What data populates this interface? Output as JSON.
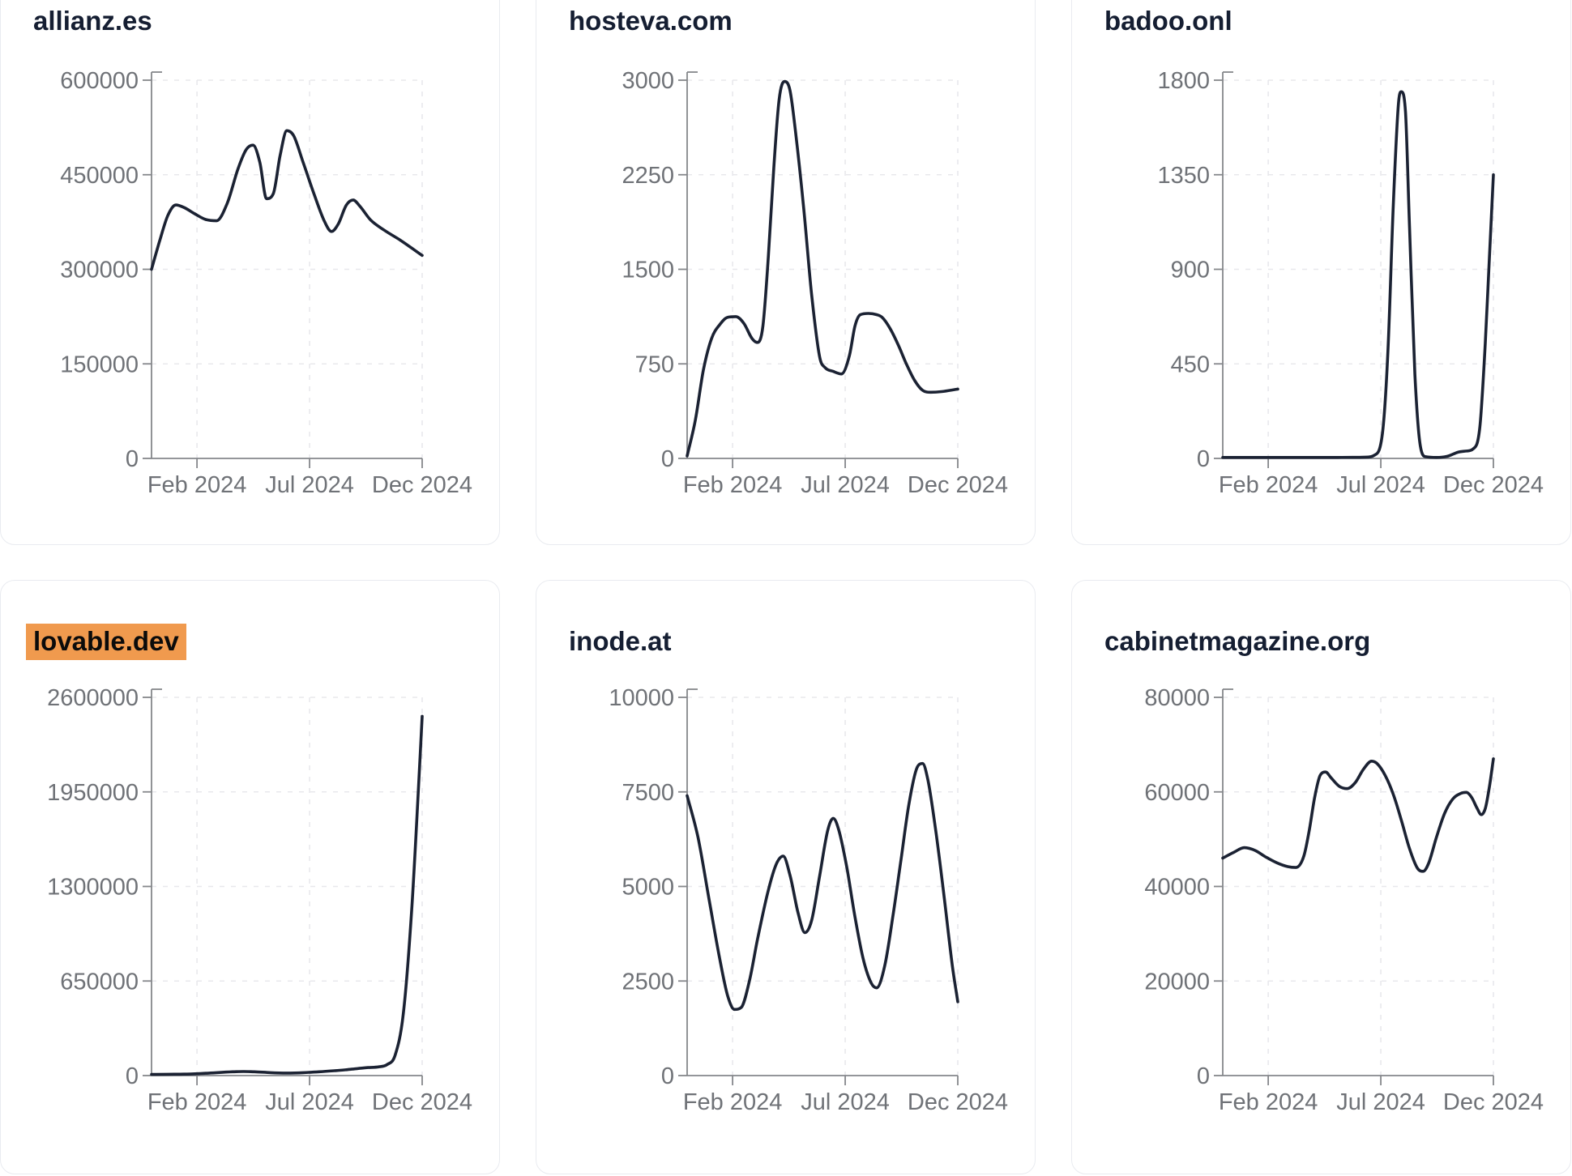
{
  "page": {
    "background": "#ffffff"
  },
  "styles": {
    "line_color": "#1b2233",
    "title_color": "#151e32",
    "label_color": "#6f7277",
    "axis_color": "#85878b",
    "grid_color": "#e8e8ec",
    "card_border": "#e9ebf0",
    "highlight_bg": "#f09a4e",
    "highlight_text": "#0b0b0b"
  },
  "x_axis": {
    "tick_labels": [
      "Feb 2024",
      "Jul 2024",
      "Dec 2024"
    ],
    "tick_positions": [
      0.168,
      0.584,
      1.0
    ]
  },
  "chart_data": [
    {
      "type": "line",
      "title": "allianz.es",
      "highlighted": false,
      "ylim": [
        0,
        600000
      ],
      "yticks": [
        0,
        150000,
        300000,
        450000,
        600000
      ],
      "xticks": [
        "Feb 2024",
        "Jul 2024",
        "Dec 2024"
      ],
      "grid": true,
      "points": [
        [
          0.0,
          300000
        ],
        [
          0.03,
          345000
        ],
        [
          0.06,
          385000
        ],
        [
          0.09,
          402000
        ],
        [
          0.12,
          398000
        ],
        [
          0.16,
          388000
        ],
        [
          0.2,
          379000
        ],
        [
          0.24,
          377000
        ],
        [
          0.28,
          405000
        ],
        [
          0.32,
          460000
        ],
        [
          0.35,
          490000
        ],
        [
          0.375,
          497000
        ],
        [
          0.4,
          470000
        ],
        [
          0.425,
          412000
        ],
        [
          0.45,
          420000
        ],
        [
          0.475,
          480000
        ],
        [
          0.5,
          520000
        ],
        [
          0.525,
          512000
        ],
        [
          0.56,
          470000
        ],
        [
          0.6,
          420000
        ],
        [
          0.64,
          375000
        ],
        [
          0.665,
          360000
        ],
        [
          0.69,
          372000
        ],
        [
          0.72,
          402000
        ],
        [
          0.745,
          410000
        ],
        [
          0.77,
          400000
        ],
        [
          0.81,
          378000
        ],
        [
          0.86,
          362000
        ],
        [
          0.92,
          346000
        ],
        [
          1.0,
          322000
        ]
      ]
    },
    {
      "type": "line",
      "title": "hosteva.com",
      "highlighted": false,
      "ylim": [
        0,
        3000
      ],
      "yticks": [
        0,
        750,
        1500,
        2250,
        3000
      ],
      "xticks": [
        "Feb 2024",
        "Jul 2024",
        "Dec 2024"
      ],
      "grid": true,
      "points": [
        [
          0.0,
          20
        ],
        [
          0.03,
          300
        ],
        [
          0.06,
          700
        ],
        [
          0.09,
          950
        ],
        [
          0.12,
          1060
        ],
        [
          0.15,
          1120
        ],
        [
          0.18,
          1125
        ],
        [
          0.21,
          1070
        ],
        [
          0.24,
          950
        ],
        [
          0.26,
          920
        ],
        [
          0.28,
          1050
        ],
        [
          0.3,
          1600
        ],
        [
          0.32,
          2300
        ],
        [
          0.34,
          2850
        ],
        [
          0.36,
          2990
        ],
        [
          0.38,
          2920
        ],
        [
          0.4,
          2600
        ],
        [
          0.43,
          2000
        ],
        [
          0.46,
          1300
        ],
        [
          0.49,
          800
        ],
        [
          0.51,
          720
        ],
        [
          0.54,
          690
        ],
        [
          0.57,
          670
        ],
        [
          0.6,
          820
        ],
        [
          0.62,
          1050
        ],
        [
          0.64,
          1140
        ],
        [
          0.67,
          1150
        ],
        [
          0.7,
          1140
        ],
        [
          0.72,
          1120
        ],
        [
          0.75,
          1030
        ],
        [
          0.78,
          900
        ],
        [
          0.81,
          750
        ],
        [
          0.84,
          620
        ],
        [
          0.87,
          540
        ],
        [
          0.9,
          525
        ],
        [
          0.94,
          530
        ],
        [
          1.0,
          550
        ]
      ]
    },
    {
      "type": "line",
      "title": "badoo.onl",
      "highlighted": false,
      "ylim": [
        0,
        1800
      ],
      "yticks": [
        0,
        450,
        900,
        1350,
        1800
      ],
      "xticks": [
        "Feb 2024",
        "Jul 2024",
        "Dec 2024"
      ],
      "grid": true,
      "points": [
        [
          0.0,
          2
        ],
        [
          0.08,
          2
        ],
        [
          0.16,
          3
        ],
        [
          0.24,
          3
        ],
        [
          0.32,
          3
        ],
        [
          0.4,
          4
        ],
        [
          0.48,
          5
        ],
        [
          0.53,
          6
        ],
        [
          0.56,
          15
        ],
        [
          0.59,
          120
        ],
        [
          0.61,
          500
        ],
        [
          0.63,
          1200
        ],
        [
          0.65,
          1700
        ],
        [
          0.66,
          1745
        ],
        [
          0.675,
          1650
        ],
        [
          0.69,
          1100
        ],
        [
          0.71,
          400
        ],
        [
          0.73,
          60
        ],
        [
          0.75,
          8
        ],
        [
          0.79,
          4
        ],
        [
          0.83,
          10
        ],
        [
          0.87,
          30
        ],
        [
          0.9,
          35
        ],
        [
          0.925,
          45
        ],
        [
          0.95,
          150
        ],
        [
          0.97,
          550
        ],
        [
          0.985,
          950
        ],
        [
          1.0,
          1350
        ]
      ]
    },
    {
      "type": "line",
      "title": "lovable.dev",
      "highlighted": true,
      "ylim": [
        0,
        2600000
      ],
      "yticks": [
        0,
        650000,
        1300000,
        1950000,
        2600000
      ],
      "xticks": [
        "Feb 2024",
        "Jul 2024",
        "Dec 2024"
      ],
      "grid": true,
      "points": [
        [
          0.0,
          8000
        ],
        [
          0.06,
          9000
        ],
        [
          0.12,
          10000
        ],
        [
          0.18,
          14000
        ],
        [
          0.24,
          20000
        ],
        [
          0.3,
          26000
        ],
        [
          0.34,
          28000
        ],
        [
          0.38,
          26000
        ],
        [
          0.44,
          20000
        ],
        [
          0.5,
          17000
        ],
        [
          0.56,
          20000
        ],
        [
          0.62,
          26000
        ],
        [
          0.68,
          34000
        ],
        [
          0.72,
          40000
        ],
        [
          0.76,
          48000
        ],
        [
          0.8,
          55000
        ],
        [
          0.84,
          60000
        ],
        [
          0.87,
          75000
        ],
        [
          0.9,
          140000
        ],
        [
          0.93,
          420000
        ],
        [
          0.96,
          1100000
        ],
        [
          0.98,
          1750000
        ],
        [
          1.0,
          2470000
        ]
      ]
    },
    {
      "type": "line",
      "title": "inode.at",
      "highlighted": false,
      "ylim": [
        0,
        10000
      ],
      "yticks": [
        0,
        2500,
        5000,
        7500,
        10000
      ],
      "xticks": [
        "Feb 2024",
        "Jul 2024",
        "Dec 2024"
      ],
      "grid": true,
      "points": [
        [
          0.0,
          7400
        ],
        [
          0.04,
          6300
        ],
        [
          0.08,
          4700
        ],
        [
          0.12,
          3100
        ],
        [
          0.15,
          2100
        ],
        [
          0.175,
          1750
        ],
        [
          0.2,
          1800
        ],
        [
          0.23,
          2500
        ],
        [
          0.26,
          3600
        ],
        [
          0.3,
          4900
        ],
        [
          0.33,
          5600
        ],
        [
          0.355,
          5800
        ],
        [
          0.38,
          5300
        ],
        [
          0.41,
          4300
        ],
        [
          0.435,
          3780
        ],
        [
          0.46,
          4100
        ],
        [
          0.49,
          5300
        ],
        [
          0.52,
          6500
        ],
        [
          0.54,
          6800
        ],
        [
          0.56,
          6500
        ],
        [
          0.59,
          5500
        ],
        [
          0.62,
          4200
        ],
        [
          0.65,
          3100
        ],
        [
          0.68,
          2450
        ],
        [
          0.7,
          2320
        ],
        [
          0.73,
          2900
        ],
        [
          0.76,
          4200
        ],
        [
          0.79,
          5700
        ],
        [
          0.82,
          7200
        ],
        [
          0.85,
          8150
        ],
        [
          0.87,
          8250
        ],
        [
          0.89,
          7800
        ],
        [
          0.92,
          6400
        ],
        [
          0.95,
          4700
        ],
        [
          0.98,
          2900
        ],
        [
          1.0,
          1950
        ]
      ]
    },
    {
      "type": "line",
      "title": "cabinetmagazine.org",
      "highlighted": false,
      "ylim": [
        0,
        80000
      ],
      "yticks": [
        0,
        20000,
        40000,
        60000,
        80000
      ],
      "xticks": [
        "Feb 2024",
        "Jul 2024",
        "Dec 2024"
      ],
      "grid": true,
      "points": [
        [
          0.0,
          46000
        ],
        [
          0.04,
          47200
        ],
        [
          0.08,
          48200
        ],
        [
          0.12,
          47600
        ],
        [
          0.16,
          46200
        ],
        [
          0.2,
          45000
        ],
        [
          0.24,
          44200
        ],
        [
          0.27,
          44000
        ],
        [
          0.3,
          46500
        ],
        [
          0.32,
          52000
        ],
        [
          0.34,
          59000
        ],
        [
          0.36,
          63500
        ],
        [
          0.38,
          64200
        ],
        [
          0.4,
          63000
        ],
        [
          0.43,
          61200
        ],
        [
          0.46,
          60700
        ],
        [
          0.49,
          62000
        ],
        [
          0.52,
          64800
        ],
        [
          0.55,
          66500
        ],
        [
          0.57,
          66000
        ],
        [
          0.6,
          63500
        ],
        [
          0.63,
          59500
        ],
        [
          0.66,
          54000
        ],
        [
          0.69,
          48000
        ],
        [
          0.72,
          43800
        ],
        [
          0.74,
          43200
        ],
        [
          0.76,
          44800
        ],
        [
          0.79,
          50500
        ],
        [
          0.82,
          55500
        ],
        [
          0.85,
          58500
        ],
        [
          0.88,
          59700
        ],
        [
          0.9,
          59900
        ],
        [
          0.92,
          58800
        ],
        [
          0.94,
          56500
        ],
        [
          0.955,
          55200
        ],
        [
          0.97,
          56500
        ],
        [
          0.985,
          61000
        ],
        [
          1.0,
          67000
        ]
      ]
    }
  ]
}
